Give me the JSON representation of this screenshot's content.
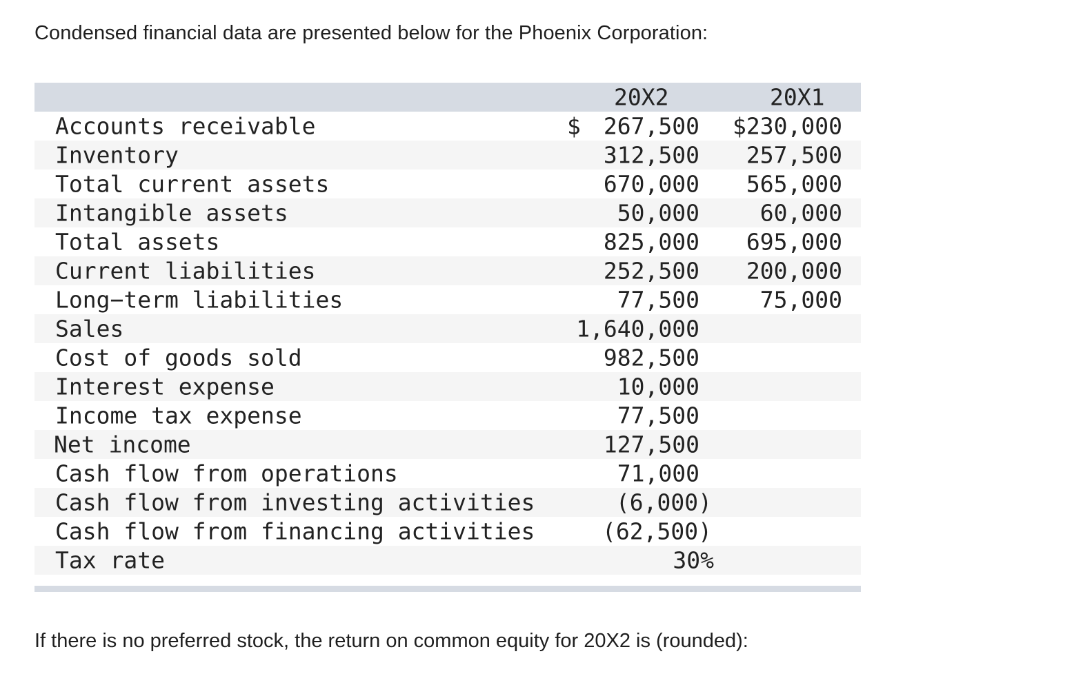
{
  "intro": "Condensed financial data are presented below for the Phoenix Corporation:",
  "table": {
    "headers": {
      "col_20x2": "20X2",
      "col_20x1": "20X1"
    },
    "rows": [
      {
        "label": "Accounts receivable",
        "currency": "$",
        "v2": "267,500",
        "v1": "$230,000"
      },
      {
        "label": "Inventory",
        "v2": "312,500",
        "v1": "257,500"
      },
      {
        "label": "Total current assets",
        "v2": "670,000",
        "v1": "565,000"
      },
      {
        "label": "Intangible assets",
        "v2": "50,000",
        "v1": "60,000"
      },
      {
        "label": "Total assets",
        "v2": "825,000",
        "v1": "695,000"
      },
      {
        "label": "Current liabilities",
        "v2": "252,500",
        "v1": "200,000"
      },
      {
        "label": "Long−term liabilities",
        "v2": "77,500",
        "v1": "75,000"
      },
      {
        "label": "Sales",
        "v2": "1,640,000",
        "v1": ""
      },
      {
        "label": "Cost of goods sold",
        "v2": "982,500",
        "v1": ""
      },
      {
        "label": "Interest expense",
        "v2": "10,000",
        "v1": ""
      },
      {
        "label": "Income tax expense",
        "v2": "77,500",
        "v1": ""
      },
      {
        "label": "Net income",
        "v2": "127,500",
        "v1": ""
      },
      {
        "label": "Cash flow from operations",
        "v2": "71,000",
        "v1": ""
      },
      {
        "label": "Cash flow from investing activities",
        "v2": "(6,000)",
        "v1": ""
      },
      {
        "label": "Cash flow from financing activities",
        "v2": "(62,500)",
        "v1": ""
      },
      {
        "label": "Tax rate",
        "v2": "30%",
        "v1": ""
      }
    ]
  },
  "question": "If there is no preferred stock, the return on common equity for 20X2 is (rounded):"
}
